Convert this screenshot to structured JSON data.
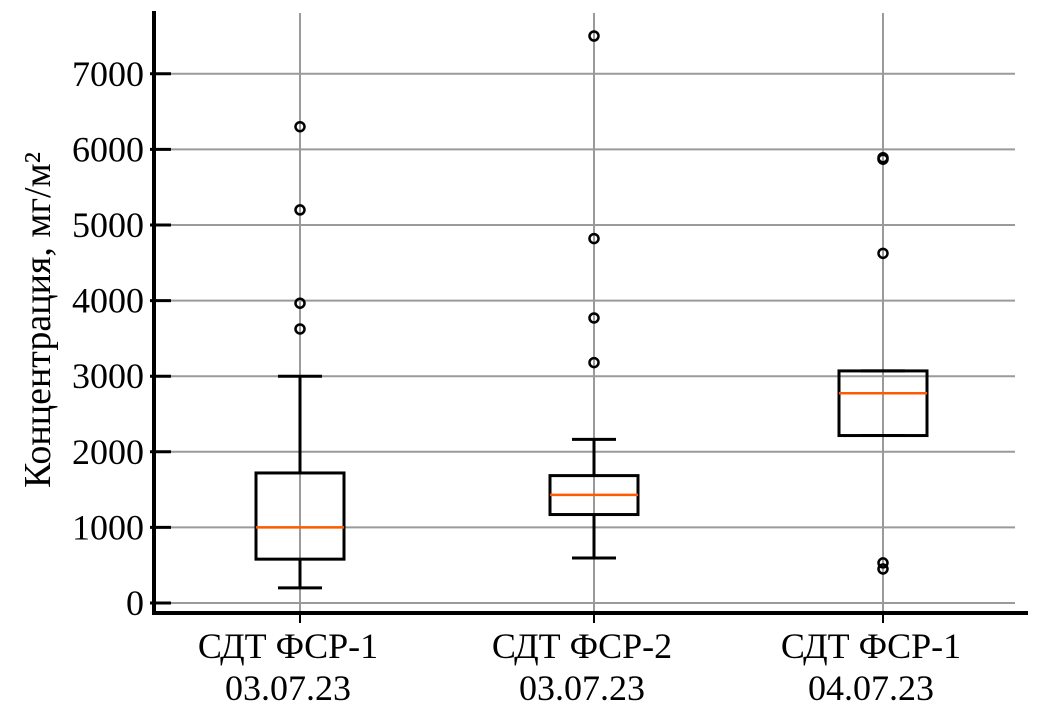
{
  "chart_data": {
    "type": "boxplot",
    "title": "",
    "xlabel": "",
    "ylabel": "Концентрация, мг/м²",
    "ylim": [
      -140,
      7800
    ],
    "yticks": [
      0,
      1000,
      2000,
      3000,
      4000,
      5000,
      6000,
      7000
    ],
    "grid": true,
    "colors": {
      "box": "#000000",
      "median": "#ff5a00",
      "grid": "#9a9a9a",
      "axis": "#000000"
    },
    "categories": [
      {
        "line1": "СДТ ФСР-1",
        "line2": "03.07.23"
      },
      {
        "line1": "СДТ ФСР-2",
        "line2": "03.07.23"
      },
      {
        "line1": "СДТ ФСР-1",
        "line2": "04.07.23"
      }
    ],
    "boxes": [
      {
        "whislo": 200,
        "q1": 580,
        "median": 1000,
        "q3": 1720,
        "whishi": 3000,
        "fliers": [
          3625,
          3965,
          5200,
          6300
        ]
      },
      {
        "whislo": 595,
        "q1": 1170,
        "median": 1430,
        "q3": 1685,
        "whishi": 2165,
        "fliers": [
          3180,
          3770,
          4820,
          7500
        ]
      },
      {
        "whislo": 2215,
        "q1": 2215,
        "median": 2775,
        "q3": 3070,
        "whishi": 3070,
        "fliers": [
          450,
          530,
          4625,
          5870,
          5890
        ]
      }
    ]
  }
}
